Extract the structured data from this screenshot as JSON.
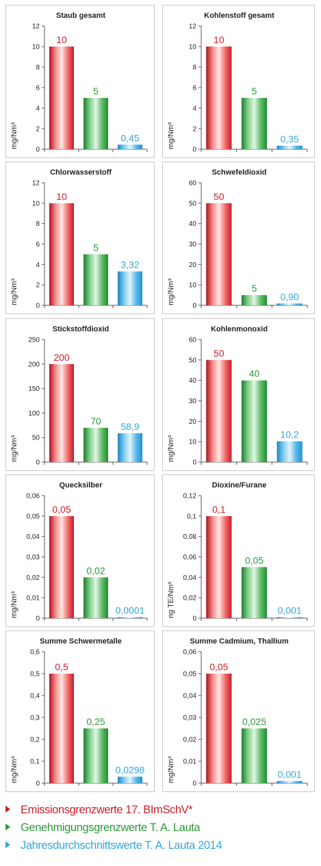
{
  "colors": {
    "red": "#cc1f2b",
    "green": "#2b9a3a",
    "blue": "#33a7dc",
    "panel_border": "#c8c8c8"
  },
  "chart_data": [
    {
      "type": "bar",
      "title": "Staub gesamt",
      "ylabel": "mg/Nm³",
      "ylim": [
        0,
        12
      ],
      "yticks": [
        "0",
        "2",
        "4",
        "6",
        "8",
        "10",
        "12"
      ],
      "values": [
        10,
        5,
        0.45
      ],
      "labels": [
        "10",
        "5",
        "0,45"
      ]
    },
    {
      "type": "bar",
      "title": "Kohlenstoff gesamt",
      "ylabel": "mg/Nm³",
      "ylim": [
        0,
        12
      ],
      "yticks": [
        "0",
        "2",
        "4",
        "6",
        "8",
        "10",
        "12"
      ],
      "values": [
        10,
        5,
        0.35
      ],
      "labels": [
        "10",
        "5",
        "0,35"
      ]
    },
    {
      "type": "bar",
      "title": "Chlorwasserstoff",
      "ylabel": "mg/Nm³",
      "ylim": [
        0,
        12
      ],
      "yticks": [
        "0",
        "2",
        "4",
        "6",
        "8",
        "10",
        "12"
      ],
      "values": [
        10,
        5,
        3.32
      ],
      "labels": [
        "10",
        "5",
        "3,32"
      ]
    },
    {
      "type": "bar",
      "title": "Schwefeldioxid",
      "ylabel": "mg/Nm³",
      "ylim": [
        0,
        60
      ],
      "yticks": [
        "0",
        "10",
        "20",
        "30",
        "40",
        "50",
        "60"
      ],
      "values": [
        50,
        5,
        0.9
      ],
      "labels": [
        "50",
        "5",
        "0,90"
      ]
    },
    {
      "type": "bar",
      "title": "Stickstoffdioxid",
      "ylabel": "mg/Nm³",
      "ylim": [
        0,
        250
      ],
      "yticks": [
        "0",
        "50",
        "100",
        "150",
        "200",
        "250"
      ],
      "values": [
        200,
        70,
        58.9
      ],
      "labels": [
        "200",
        "70",
        "58,9"
      ]
    },
    {
      "type": "bar",
      "title": "Kohlenmonoxid",
      "ylabel": "mg/Nm³",
      "ylim": [
        0,
        60
      ],
      "yticks": [
        "0",
        "10",
        "20",
        "30",
        "40",
        "50",
        "60"
      ],
      "values": [
        50,
        40,
        10.2
      ],
      "labels": [
        "50",
        "40",
        "10,2"
      ]
    },
    {
      "type": "bar",
      "title": "Quecksilber",
      "ylabel": "mg/Nm³",
      "ylim": [
        0,
        0.06
      ],
      "yticks": [
        "0",
        "0,01",
        "0,02",
        "0,03",
        "0,04",
        "0,05",
        "0,06"
      ],
      "values": [
        0.05,
        0.02,
        0.0001
      ],
      "labels": [
        "0,05",
        "0,02",
        "0,0001"
      ]
    },
    {
      "type": "bar",
      "title": "Dioxine/Furane",
      "ylabel": "ng TE/Nm³",
      "ylim": [
        0,
        0.12
      ],
      "yticks": [
        "0",
        "0,02",
        "0,04",
        "0,06",
        "0,08",
        "0,1",
        "0,12"
      ],
      "values": [
        0.1,
        0.05,
        0.001
      ],
      "labels": [
        "0,1",
        "0,05",
        "0,001"
      ]
    },
    {
      "type": "bar",
      "title": "Summe Schwermetalle",
      "ylabel": "mg/Nm³",
      "ylim": [
        0,
        0.6
      ],
      "yticks": [
        "0",
        "0,1",
        "0,2",
        "0,3",
        "0,4",
        "0,5",
        "0,6"
      ],
      "values": [
        0.5,
        0.25,
        0.0298
      ],
      "labels": [
        "0,5",
        "0,25",
        "0,0298"
      ]
    },
    {
      "type": "bar",
      "title": "Summe Cadmium, Thallium",
      "ylabel": "mg/Nm³",
      "ylim": [
        0,
        0.06
      ],
      "yticks": [
        "0",
        "0,01",
        "0,02",
        "0,03",
        "0,04",
        "0,05",
        "0,06"
      ],
      "values": [
        0.05,
        0.025,
        0.001
      ],
      "labels": [
        "0,05",
        "0,025",
        "0,001"
      ]
    }
  ],
  "legend": [
    {
      "label": "Emissionsgrenzwerte 17. BImSchV*",
      "color": "#cc1f2b"
    },
    {
      "label": "Genehmigungsgrenzwerte T. A. Lauta",
      "color": "#2b9a3a"
    },
    {
      "label": "Jahresdurchschnittswerte T. A. Lauta 2014",
      "color": "#33a7dc"
    }
  ]
}
